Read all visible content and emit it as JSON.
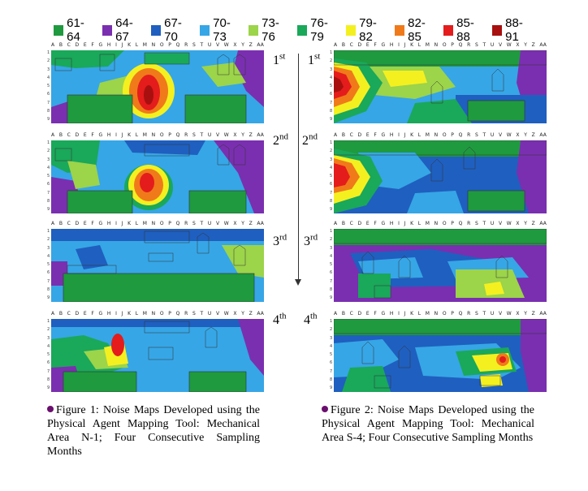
{
  "legend": [
    {
      "label": "61-64",
      "color": "#1f9a3f"
    },
    {
      "label": "64-67",
      "color": "#7a2fb0"
    },
    {
      "label": "67-70",
      "color": "#1f5fbf"
    },
    {
      "label": "70-73",
      "color": "#36a6e6"
    },
    {
      "label": "73-76",
      "color": "#9cd44a"
    },
    {
      "label": "76-79",
      "color": "#1aa85a"
    },
    {
      "label": "79-82",
      "color": "#f4f020"
    },
    {
      "label": "82-85",
      "color": "#f07a1a"
    },
    {
      "label": "85-88",
      "color": "#e41c1c"
    },
    {
      "label": "88-91",
      "color": "#a81010"
    }
  ],
  "grid": {
    "columns": [
      "A",
      "B",
      "C",
      "D",
      "E",
      "F",
      "G",
      "H",
      "I",
      "J",
      "K",
      "L",
      "M",
      "N",
      "O",
      "P",
      "Q",
      "R",
      "S",
      "T",
      "U",
      "V",
      "W",
      "X",
      "Y",
      "Z",
      "AA"
    ],
    "rows": [
      "1",
      "2",
      "3",
      "4",
      "5",
      "6",
      "7",
      "8",
      "9"
    ]
  },
  "months": {
    "first": {
      "num": "1",
      "suffix": "st"
    },
    "second": {
      "num": "2",
      "suffix": "nd"
    },
    "third": {
      "num": "3",
      "suffix": "rd"
    },
    "fourth": {
      "num": "4",
      "suffix": "th"
    }
  },
  "captions": {
    "figure1": "Figure 1: Noise Maps Developed using the Physical Agent Mapping Tool: Mechanical Area N-1; Four Consecutive Sampling Months",
    "figure2": "Figure 2: Noise Maps Developed using the Physical Agent Mapping Tool: Mechanical Area S-4; Four Consecutive Sampling Months"
  }
}
